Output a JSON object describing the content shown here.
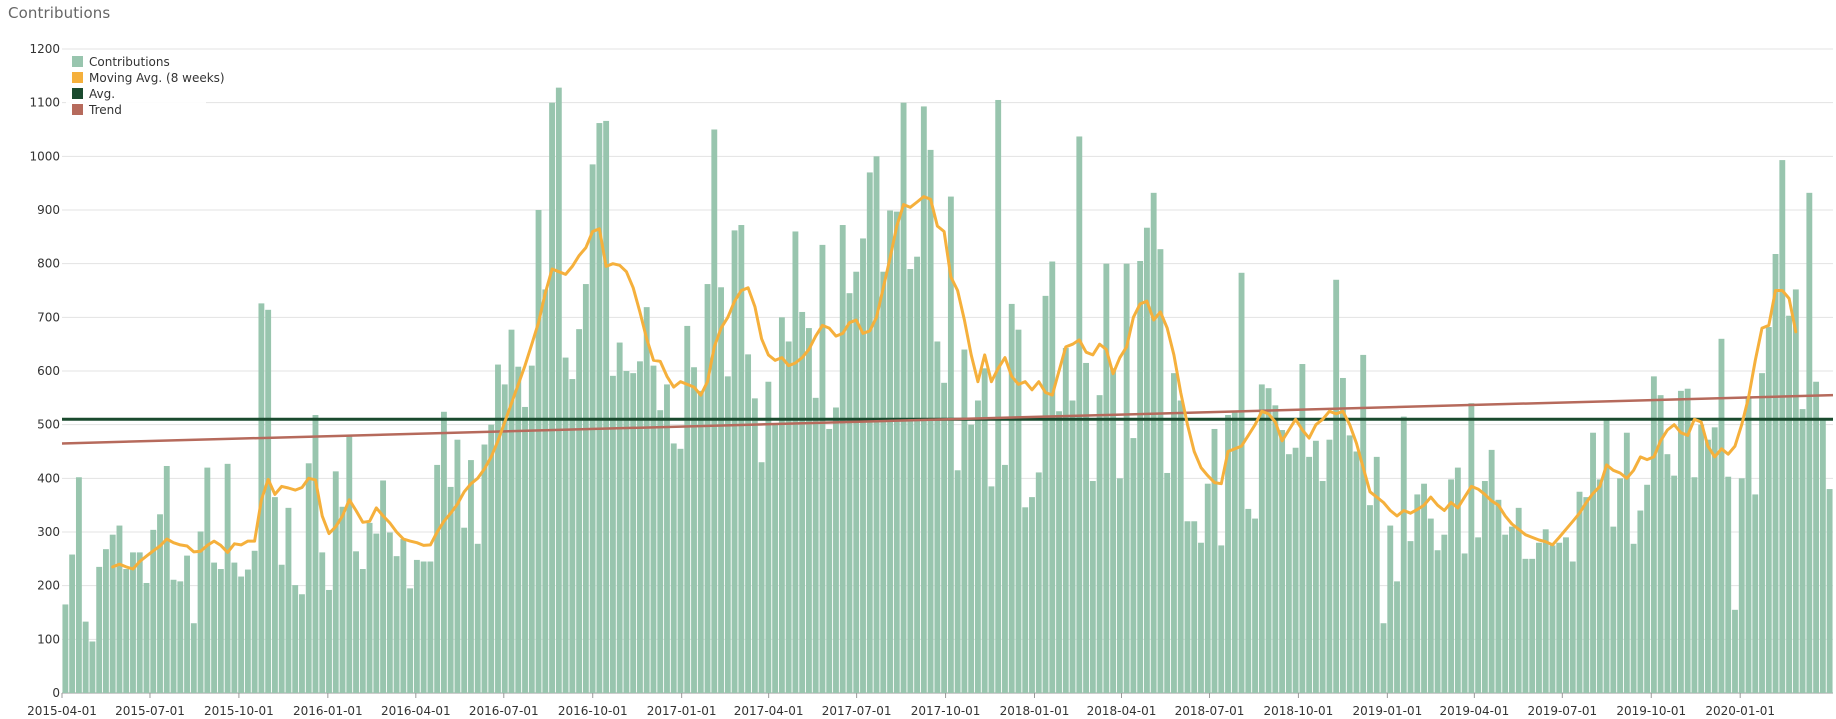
{
  "page": {
    "title": "Contributions"
  },
  "colors": {
    "bars": "#98c5ae",
    "moving_avg": "#f5b03c",
    "avg": "#1a4a2e",
    "trend": "#b66a5c",
    "grid": "#e3e3e3",
    "axis": "#999999"
  },
  "chart_data": {
    "type": "bar",
    "title": "Contributions",
    "xlabel": "",
    "ylabel": "",
    "ylim": [
      0,
      1200
    ],
    "y_ticks": [
      0,
      100,
      200,
      300,
      400,
      500,
      600,
      700,
      800,
      900,
      1000,
      1100,
      1200
    ],
    "x_start": "2015-04-01",
    "x_end": "2020-04-06",
    "x_ticks": [
      "2015-04-01",
      "2015-07-01",
      "2015-10-01",
      "2016-01-01",
      "2016-04-01",
      "2016-07-01",
      "2016-10-01",
      "2017-01-01",
      "2017-04-01",
      "2017-07-01",
      "2017-10-01",
      "2018-01-01",
      "2018-04-01",
      "2018-07-01",
      "2018-10-01",
      "2019-01-01",
      "2019-04-01",
      "2019-07-01",
      "2019-10-01",
      "2020-01-01"
    ],
    "grid": true,
    "legend_position": "top-left",
    "legend": [
      "Contributions",
      "Moving Avg. (8 weeks)",
      "Avg.",
      "Trend"
    ],
    "series": [
      {
        "name": "Contributions",
        "type": "bar",
        "values": [
          165,
          258,
          402,
          133,
          96,
          235,
          268,
          295,
          312,
          231,
          262,
          262,
          205,
          304,
          333,
          423,
          211,
          208,
          256,
          130,
          301,
          420,
          243,
          231,
          427,
          243,
          217,
          230,
          265,
          726,
          714,
          365,
          239,
          345,
          201,
          184,
          428,
          518,
          262,
          192,
          413,
          347,
          481,
          264,
          231,
          317,
          297,
          396,
          299,
          255,
          287,
          195,
          248,
          245,
          245,
          425,
          524,
          384,
          472,
          308,
          434,
          278,
          463,
          500,
          612,
          575,
          677,
          608,
          533,
          610,
          900,
          752,
          1100,
          1128,
          625,
          585,
          678,
          762,
          985,
          1062,
          1066,
          591,
          653,
          600,
          596,
          618,
          719,
          610,
          527,
          575,
          465,
          455,
          684,
          607,
          563,
          762,
          1050,
          756,
          590,
          862,
          872,
          631,
          549,
          430,
          580,
          500,
          700,
          655,
          860,
          710,
          680,
          550,
          835,
          492,
          532,
          872,
          745,
          785,
          847,
          970,
          1000,
          785,
          899,
          897,
          1100,
          790,
          813,
          1093,
          1012,
          655,
          578,
          925,
          415,
          640,
          500,
          545,
          605,
          385,
          1105,
          425,
          725,
          677,
          346,
          365,
          411,
          740,
          804,
          525,
          643,
          545,
          1037,
          615,
          395,
          555,
          800,
          605,
          400,
          800,
          475,
          805,
          867,
          932,
          827,
          410,
          596,
          545,
          320,
          320,
          280,
          390,
          492,
          275,
          518,
          523,
          783,
          343,
          325,
          575,
          568,
          536,
          490,
          445,
          457,
          613,
          440,
          470,
          395,
          472,
          770,
          587,
          480,
          450,
          630,
          350,
          440,
          130,
          312,
          208,
          515,
          283,
          370,
          390,
          325,
          266,
          295,
          398,
          420,
          260,
          540,
          290,
          395,
          453,
          360,
          295,
          310,
          345,
          250,
          250,
          280,
          305,
          275,
          280,
          290,
          245,
          375,
          365,
          485,
          398,
          510,
          310,
          400,
          485,
          278,
          340,
          388,
          590,
          555,
          445,
          405,
          563,
          567,
          402,
          500,
          472,
          495,
          660,
          403,
          155,
          400,
          553,
          370,
          596,
          682,
          818,
          993,
          703,
          752,
          529,
          932,
          580,
          510,
          380
        ]
      },
      {
        "name": "Moving Avg. (8 weeks)",
        "type": "line",
        "values": [
          null,
          null,
          null,
          null,
          null,
          null,
          null,
          235,
          240,
          235,
          231,
          245,
          255,
          265,
          274,
          287,
          280,
          276,
          274,
          263,
          264,
          275,
          283,
          275,
          262,
          278,
          276,
          283,
          283,
          360,
          398,
          370,
          385,
          382,
          378,
          383,
          400,
          397,
          330,
          297,
          310,
          330,
          360,
          340,
          318,
          320,
          345,
          330,
          317,
          300,
          287,
          283,
          280,
          275,
          276,
          300,
          320,
          335,
          352,
          375,
          390,
          400,
          418,
          440,
          470,
          505,
          540,
          575,
          610,
          650,
          690,
          745,
          790,
          785,
          780,
          795,
          815,
          830,
          860,
          865,
          795,
          800,
          797,
          785,
          755,
          710,
          660,
          620,
          618,
          590,
          570,
          580,
          575,
          570,
          555,
          580,
          645,
          680,
          700,
          730,
          750,
          755,
          720,
          660,
          630,
          620,
          625,
          610,
          615,
          625,
          640,
          665,
          685,
          680,
          665,
          670,
          690,
          695,
          670,
          675,
          700,
          755,
          810,
          870,
          910,
          905,
          915,
          925,
          920,
          870,
          860,
          775,
          750,
          695,
          630,
          580,
          630,
          580,
          605,
          625,
          590,
          575,
          580,
          565,
          580,
          560,
          555,
          600,
          645,
          650,
          658,
          635,
          630,
          650,
          640,
          595,
          625,
          645,
          700,
          725,
          730,
          695,
          710,
          680,
          630,
          560,
          500,
          450,
          420,
          405,
          392,
          390,
          450,
          455,
          460,
          480,
          500,
          525,
          520,
          505,
          470,
          490,
          510,
          490,
          475,
          500,
          510,
          525,
          520,
          525,
          500,
          465,
          420,
          375,
          365,
          355,
          340,
          330,
          340,
          335,
          342,
          350,
          365,
          350,
          340,
          355,
          345,
          365,
          385,
          380,
          370,
          358,
          350,
          330,
          315,
          305,
          295,
          290,
          285,
          282,
          276,
          290,
          305,
          320,
          335,
          355,
          372,
          385,
          425,
          415,
          410,
          400,
          415,
          440,
          435,
          440,
          470,
          490,
          500,
          485,
          480,
          510,
          505,
          460,
          440,
          455,
          445,
          460,
          500,
          550,
          620,
          680,
          685,
          750,
          750,
          735,
          673
        ]
      },
      {
        "name": "Avg.",
        "type": "line",
        "value": 510
      },
      {
        "name": "Trend",
        "type": "line",
        "start": 465,
        "end": 555
      }
    ]
  }
}
